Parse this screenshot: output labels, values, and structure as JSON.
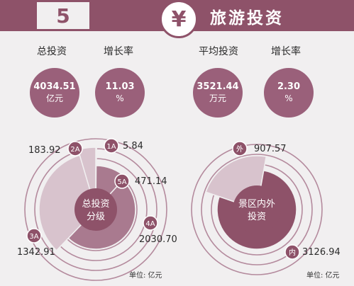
{
  "header": {
    "number": "5",
    "emblem": "¥",
    "title": "旅游投资"
  },
  "stats": [
    {
      "label": "总投资",
      "value": "4034.51",
      "unit": "亿元"
    },
    {
      "label": "增长率",
      "value": "11.03",
      "unit": "%"
    },
    {
      "label": "平均投资",
      "value": "3521.44",
      "unit": "万元"
    },
    {
      "label": "增长率",
      "value": "2.30",
      "unit": "%"
    }
  ],
  "chart_data": [
    {
      "type": "pie",
      "center_label": [
        "总投资",
        "分级"
      ],
      "slices": [
        {
          "name": "1A",
          "value": 5.84,
          "label": "5.84"
        },
        {
          "name": "5A",
          "value": 471.14,
          "label": "471.14"
        },
        {
          "name": "4A",
          "value": 2030.7,
          "label": "2030.70"
        },
        {
          "name": "3A",
          "value": 1342.91,
          "label": "1342.91"
        },
        {
          "name": "2A",
          "value": 183.92,
          "label": "183.92"
        }
      ],
      "unit_note": "单位: 亿元",
      "colors": {
        "dark": "#8e5269",
        "light": "#d8c3cd",
        "mid": "#a97a8f",
        "ring": "#b48a9d"
      }
    },
    {
      "type": "pie",
      "center_label": [
        "景区内外",
        "投资"
      ],
      "slices": [
        {
          "name": "内",
          "value": 3126.94,
          "label": "3126.94"
        },
        {
          "name": "外",
          "value": 907.57,
          "label": "907.57"
        }
      ],
      "unit_note": "单位: 亿元",
      "colors": {
        "dark": "#8e5269",
        "light": "#d8c3cd",
        "ring": "#b48a9d"
      }
    }
  ]
}
